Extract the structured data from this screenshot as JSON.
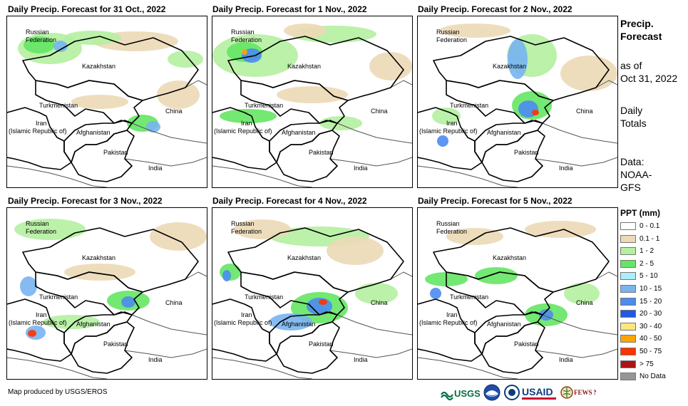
{
  "panels": [
    {
      "title": "Daily Precip. Forecast for 31 Oct., 2022"
    },
    {
      "title": "Daily Precip. Forecast for 1 Nov., 2022"
    },
    {
      "title": "Daily Precip. Forecast for 2 Nov., 2022"
    },
    {
      "title": "Daily Precip. Forecast for 3 Nov., 2022"
    },
    {
      "title": "Daily Precip. Forecast for 4 Nov., 2022"
    },
    {
      "title": "Daily Precip. Forecast for 5 Nov., 2022"
    }
  ],
  "countries": {
    "russia_line1": "Russian",
    "russia_line2": "Federation",
    "kazakhstan": "Kazakhstan",
    "turkmenistan": "Turkmenistan",
    "china": "China",
    "iran_line1": "Iran",
    "iran_line2": "(Islamic Republic of)",
    "afghanistan": "Afghanistan",
    "pakistan": "Pakistan",
    "india": "India"
  },
  "side_info": {
    "heading_line1": "Precip.",
    "heading_line2": "Forecast",
    "asof_line1": "as of",
    "asof_line2": "Oct 31, 2022",
    "totals_line1": "Daily",
    "totals_line2": "Totals",
    "data_line1": "Data:",
    "data_line2": "NOAA-",
    "data_line3": "GFS"
  },
  "legend": {
    "title": "PPT (mm)",
    "items": [
      {
        "label": "0 - 0.1",
        "color": "#ffffff"
      },
      {
        "label": "0.1 - 1",
        "color": "#ecd9b6"
      },
      {
        "label": "1 - 2",
        "color": "#b4f0a0"
      },
      {
        "label": "2 - 5",
        "color": "#64e664"
      },
      {
        "label": "5 - 10",
        "color": "#aaeeff"
      },
      {
        "label": "10 - 15",
        "color": "#78b4f0"
      },
      {
        "label": "15 - 20",
        "color": "#4b8cf0"
      },
      {
        "label": "20 - 30",
        "color": "#1e5ae6"
      },
      {
        "label": "30 - 40",
        "color": "#ffe678"
      },
      {
        "label": "40 - 50",
        "color": "#ffa500"
      },
      {
        "label": "50 - 75",
        "color": "#ff3200"
      },
      {
        "label": "> 75",
        "color": "#aa1414"
      },
      {
        "label": "No Data",
        "color": "#969696"
      }
    ]
  },
  "credit": "Map produced by USGS/EROS",
  "logos": [
    "USGS",
    "NOAA",
    "USAID",
    "FEWS NET"
  ],
  "colors": {
    "border": "#000000",
    "neighbor_border": "#555555"
  }
}
